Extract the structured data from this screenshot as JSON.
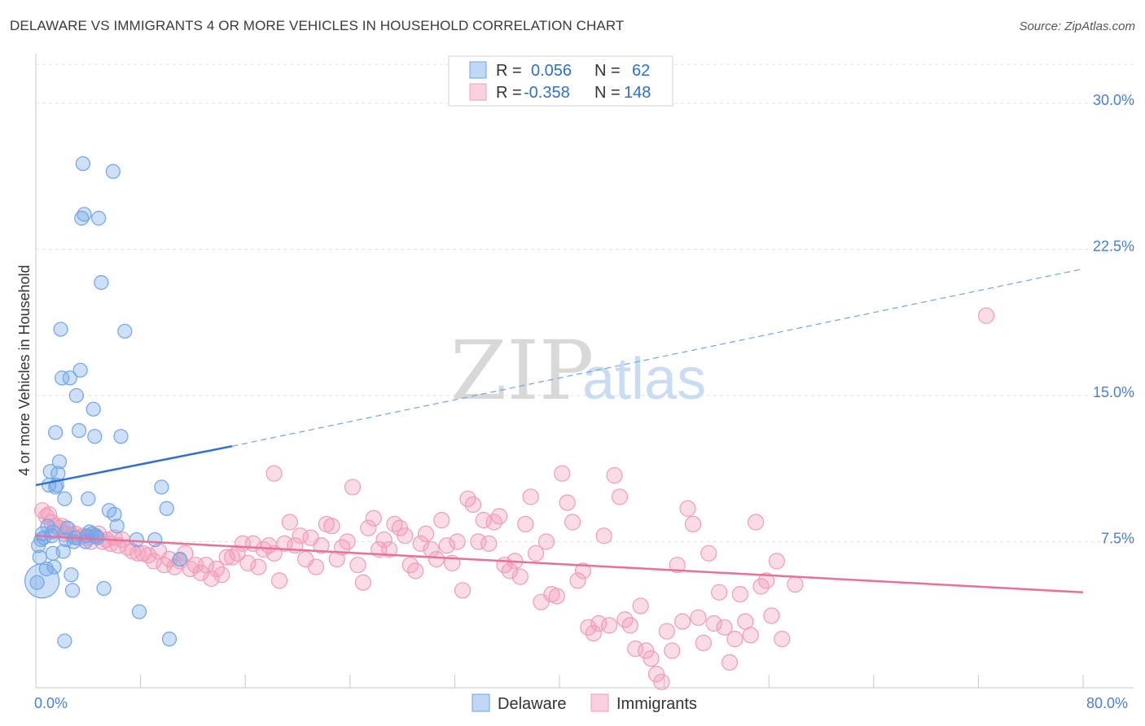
{
  "title": "DELAWARE VS IMMIGRANTS 4 OR MORE VEHICLES IN HOUSEHOLD CORRELATION CHART",
  "source": "Source: ZipAtlas.com",
  "watermark": {
    "zip": "ZIP",
    "atlas": "atlas"
  },
  "chart_data": {
    "type": "scatter",
    "xlabel": "",
    "ylabel": "4 or more Vehicles in Household",
    "xlim": [
      0,
      80
    ],
    "ylim": [
      0,
      32
    ],
    "x_tick_labels": {
      "min": "0.0%",
      "max": "80.0%"
    },
    "y_ticks": [
      {
        "value": 7.5,
        "label": "7.5%"
      },
      {
        "value": 15.0,
        "label": "15.0%"
      },
      {
        "value": 22.5,
        "label": "22.5%"
      },
      {
        "value": 30.0,
        "label": "30.0%"
      }
    ],
    "grid": true,
    "legend_position": "top-center",
    "legend": [
      {
        "r_label": "R =",
        "r": "0.056",
        "n_label": "N =",
        "n": "62"
      },
      {
        "r_label": "R =",
        "r": "-0.358",
        "n_label": "N =",
        "n": "148"
      }
    ],
    "series": [
      {
        "name": "Delaware",
        "color": "#6fa5e8",
        "trend": {
          "x0": 0,
          "y0": 10.4,
          "x1": 15,
          "y1": 12.4,
          "dashed_to_x": 80,
          "dashed_to_y": 21.5
        },
        "points": [
          [
            0.1,
            5.4
          ],
          [
            0.3,
            6.7
          ],
          [
            0.2,
            7.3
          ],
          [
            0.4,
            7.6
          ],
          [
            0.5,
            7.9
          ],
          [
            0.6,
            7.7
          ],
          [
            0.8,
            6.1
          ],
          [
            0.9,
            8.3
          ],
          [
            1.0,
            10.4
          ],
          [
            1.1,
            11.1
          ],
          [
            1.2,
            7.8
          ],
          [
            1.3,
            8.0
          ],
          [
            1.4,
            6.2
          ],
          [
            1.5,
            10.3
          ],
          [
            1.6,
            10.4
          ],
          [
            1.7,
            11.0
          ],
          [
            1.8,
            11.6
          ],
          [
            1.9,
            18.4
          ],
          [
            2.0,
            15.9
          ],
          [
            1.5,
            13.1
          ],
          [
            2.1,
            7.0
          ],
          [
            2.2,
            9.7
          ],
          [
            2.3,
            7.6
          ],
          [
            2.4,
            8.2
          ],
          [
            2.2,
            2.4
          ],
          [
            2.6,
            15.9
          ],
          [
            2.7,
            5.8
          ],
          [
            2.8,
            5.0
          ],
          [
            2.9,
            7.5
          ],
          [
            3.0,
            7.7
          ],
          [
            3.1,
            15.0
          ],
          [
            3.3,
            13.2
          ],
          [
            3.4,
            16.3
          ],
          [
            3.5,
            24.1
          ],
          [
            3.7,
            24.3
          ],
          [
            3.8,
            7.5
          ],
          [
            3.9,
            7.8
          ],
          [
            3.6,
            26.9
          ],
          [
            4.0,
            9.7
          ],
          [
            4.1,
            8.0
          ],
          [
            4.3,
            7.9
          ],
          [
            4.4,
            14.3
          ],
          [
            4.5,
            12.9
          ],
          [
            4.6,
            7.8
          ],
          [
            4.8,
            24.1
          ],
          [
            5.0,
            20.8
          ],
          [
            5.2,
            5.1
          ],
          [
            5.6,
            9.1
          ],
          [
            6.0,
            8.9
          ],
          [
            6.2,
            8.3
          ],
          [
            6.5,
            12.9
          ],
          [
            6.8,
            18.3
          ],
          [
            4.7,
            7.7
          ],
          [
            5.9,
            26.5
          ],
          [
            7.7,
            7.6
          ],
          [
            7.9,
            3.9
          ],
          [
            9.1,
            7.6
          ],
          [
            9.6,
            10.3
          ],
          [
            10.0,
            9.2
          ],
          [
            10.2,
            2.5
          ],
          [
            11.0,
            6.6
          ],
          [
            1.3,
            6.9
          ]
        ],
        "big_points": [
          [
            0.1,
            5.4
          ]
        ]
      },
      {
        "name": "Immigrants",
        "color": "#f29bb8",
        "trend": {
          "x0": 0,
          "y0": 7.8,
          "x1": 80,
          "y1": 4.9
        },
        "points": [
          [
            0.5,
            9.1
          ],
          [
            0.8,
            8.8
          ],
          [
            1.0,
            8.9
          ],
          [
            1.2,
            8.5
          ],
          [
            1.5,
            8.3
          ],
          [
            1.8,
            8.2
          ],
          [
            2.0,
            8.3
          ],
          [
            2.2,
            7.9
          ],
          [
            2.5,
            8.1
          ],
          [
            2.8,
            7.8
          ],
          [
            3.0,
            7.9
          ],
          [
            3.3,
            7.7
          ],
          [
            3.6,
            7.8
          ],
          [
            3.9,
            7.7
          ],
          [
            4.2,
            7.5
          ],
          [
            4.5,
            7.8
          ],
          [
            4.8,
            7.9
          ],
          [
            5.1,
            7.5
          ],
          [
            5.4,
            7.6
          ],
          [
            5.7,
            7.4
          ],
          [
            6.0,
            7.7
          ],
          [
            6.3,
            7.3
          ],
          [
            6.6,
            7.6
          ],
          [
            7.0,
            7.2
          ],
          [
            7.4,
            7.0
          ],
          [
            7.8,
            6.9
          ],
          [
            8.2,
            6.9
          ],
          [
            8.6,
            6.8
          ],
          [
            9.0,
            6.5
          ],
          [
            9.4,
            7.0
          ],
          [
            9.8,
            6.3
          ],
          [
            10.2,
            6.6
          ],
          [
            10.6,
            6.2
          ],
          [
            11.0,
            6.5
          ],
          [
            11.4,
            6.9
          ],
          [
            11.8,
            6.1
          ],
          [
            12.2,
            6.3
          ],
          [
            12.6,
            5.9
          ],
          [
            13.0,
            6.3
          ],
          [
            13.4,
            5.6
          ],
          [
            13.8,
            6.1
          ],
          [
            14.2,
            5.8
          ],
          [
            14.6,
            6.7
          ],
          [
            15.0,
            6.7
          ],
          [
            15.4,
            6.9
          ],
          [
            15.8,
            7.4
          ],
          [
            16.2,
            6.4
          ],
          [
            16.6,
            7.4
          ],
          [
            17.0,
            6.2
          ],
          [
            17.4,
            7.1
          ],
          [
            17.8,
            7.3
          ],
          [
            18.2,
            6.9
          ],
          [
            18.6,
            5.5
          ],
          [
            19.0,
            7.4
          ],
          [
            19.4,
            8.5
          ],
          [
            19.8,
            7.3
          ],
          [
            20.2,
            7.8
          ],
          [
            20.6,
            6.6
          ],
          [
            21.0,
            7.7
          ],
          [
            21.4,
            6.2
          ],
          [
            21.8,
            7.3
          ],
          [
            22.2,
            8.4
          ],
          [
            22.6,
            8.3
          ],
          [
            23.0,
            6.6
          ],
          [
            23.4,
            7.2
          ],
          [
            23.8,
            7.5
          ],
          [
            24.2,
            10.3
          ],
          [
            24.6,
            6.3
          ],
          [
            25.0,
            5.4
          ],
          [
            25.4,
            8.2
          ],
          [
            25.8,
            8.7
          ],
          [
            26.2,
            7.1
          ],
          [
            26.6,
            7.6
          ],
          [
            27.0,
            7.1
          ],
          [
            27.4,
            8.4
          ],
          [
            27.8,
            8.2
          ],
          [
            28.2,
            7.8
          ],
          [
            28.6,
            6.3
          ],
          [
            29.0,
            6.0
          ],
          [
            29.4,
            7.4
          ],
          [
            29.8,
            7.9
          ],
          [
            30.2,
            7.1
          ],
          [
            30.6,
            6.6
          ],
          [
            31.0,
            8.6
          ],
          [
            31.4,
            7.3
          ],
          [
            31.8,
            6.4
          ],
          [
            32.2,
            7.5
          ],
          [
            32.6,
            5.0
          ],
          [
            33.0,
            9.7
          ],
          [
            33.4,
            9.4
          ],
          [
            33.8,
            7.5
          ],
          [
            34.2,
            8.6
          ],
          [
            34.6,
            7.4
          ],
          [
            35.0,
            8.5
          ],
          [
            35.4,
            8.8
          ],
          [
            35.8,
            6.3
          ],
          [
            36.2,
            6.0
          ],
          [
            36.6,
            6.5
          ],
          [
            37.0,
            5.7
          ],
          [
            37.4,
            8.4
          ],
          [
            37.8,
            9.8
          ],
          [
            38.2,
            6.9
          ],
          [
            38.6,
            4.4
          ],
          [
            39.0,
            7.5
          ],
          [
            39.4,
            4.8
          ],
          [
            39.8,
            4.7
          ],
          [
            40.2,
            11.0
          ],
          [
            40.6,
            9.5
          ],
          [
            41.0,
            8.5
          ],
          [
            41.4,
            5.5
          ],
          [
            41.8,
            6.0
          ],
          [
            42.2,
            3.1
          ],
          [
            42.6,
            2.8
          ],
          [
            43.0,
            3.3
          ],
          [
            43.4,
            7.8
          ],
          [
            43.8,
            3.2
          ],
          [
            44.2,
            10.9
          ],
          [
            44.6,
            9.8
          ],
          [
            45.0,
            3.5
          ],
          [
            45.4,
            3.2
          ],
          [
            45.8,
            2.0
          ],
          [
            46.2,
            4.2
          ],
          [
            46.6,
            1.9
          ],
          [
            47.0,
            1.5
          ],
          [
            47.4,
            0.7
          ],
          [
            47.8,
            0.3
          ],
          [
            48.2,
            2.9
          ],
          [
            48.6,
            1.9
          ],
          [
            49.0,
            6.3
          ],
          [
            49.4,
            3.4
          ],
          [
            49.8,
            9.2
          ],
          [
            50.2,
            8.4
          ],
          [
            50.6,
            3.6
          ],
          [
            51.0,
            2.3
          ],
          [
            51.4,
            6.9
          ],
          [
            51.8,
            3.3
          ],
          [
            52.2,
            4.9
          ],
          [
            52.6,
            3.1
          ],
          [
            53.0,
            1.3
          ],
          [
            53.4,
            2.5
          ],
          [
            53.8,
            4.8
          ],
          [
            54.2,
            3.4
          ],
          [
            54.6,
            2.7
          ],
          [
            55.0,
            8.5
          ],
          [
            55.4,
            5.2
          ],
          [
            55.8,
            5.5
          ],
          [
            56.2,
            3.7
          ],
          [
            56.6,
            6.5
          ],
          [
            57.0,
            2.5
          ],
          [
            58.0,
            5.3
          ],
          [
            72.6,
            19.1
          ],
          [
            18.2,
            11.0
          ]
        ]
      }
    ]
  },
  "bottom_legend": [
    {
      "label": "Delaware",
      "color": "#6fa5e8"
    },
    {
      "label": "Immigrants",
      "color": "#f29bb8"
    }
  ]
}
